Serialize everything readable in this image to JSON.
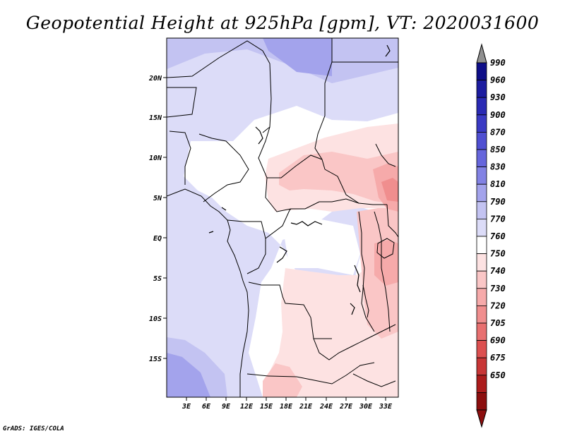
{
  "title": "Geopotential Height at 925hPa [gpm], VT: 2020031600",
  "footer": "GrADS: IGES/COLA",
  "map": {
    "lat_labels": [
      "20N",
      "15N",
      "10N",
      "5N",
      "EQ",
      "5S",
      "10S",
      "15S"
    ],
    "lon_labels": [
      "3E",
      "6E",
      "9E",
      "12E",
      "15E",
      "18E",
      "21E",
      "24E",
      "27E",
      "30E",
      "33E"
    ]
  },
  "colorbar": {
    "levels": [
      "990",
      "960",
      "930",
      "900",
      "870",
      "850",
      "830",
      "810",
      "790",
      "770",
      "760",
      "750",
      "740",
      "730",
      "720",
      "705",
      "690",
      "675",
      "650"
    ],
    "colors": [
      "#0e0e88",
      "#1c1ca0",
      "#2a2ab4",
      "#3a3ac4",
      "#4f4fd2",
      "#6666dc",
      "#8282e4",
      "#a3a3ec",
      "#c3c3f2",
      "#dcdcf8",
      "#ffffff",
      "#fde2e2",
      "#fac6c6",
      "#f6aaaa",
      "#f08e8e",
      "#e87070",
      "#dc5050",
      "#c83636",
      "#ac1c1c",
      "#8c0e0e"
    ],
    "top_arrow_color": "#909090",
    "bottom_arrow_color": "#8c0e0e"
  }
}
